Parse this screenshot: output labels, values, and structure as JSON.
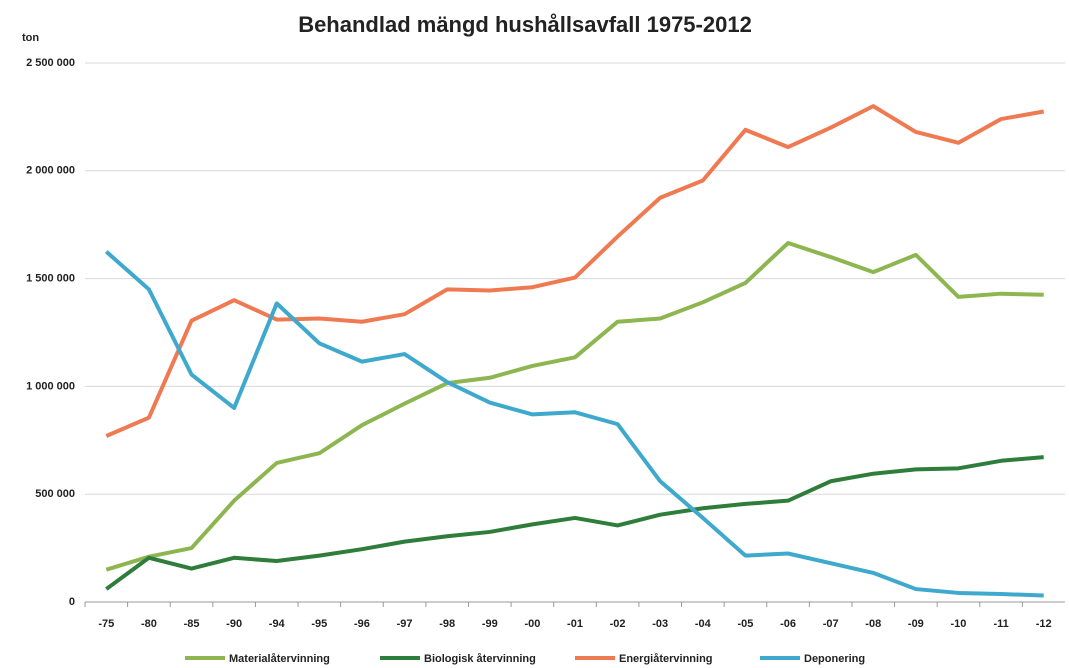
{
  "chart_data": {
    "type": "line",
    "title": "Behandlad mängd hushållsavfall 1975-2012",
    "ylabel": "ton",
    "categories": [
      "-75",
      "-80",
      "-85",
      "-90",
      "-94",
      "-95",
      "-96",
      "-97",
      "-98",
      "-99",
      "-00",
      "-01",
      "-02",
      "-03",
      "-04",
      "-05",
      "-06",
      "-07",
      "-08",
      "-09",
      "-10",
      "-11",
      "-12"
    ],
    "ylim": [
      0,
      2500000
    ],
    "yticks": [
      {
        "value": 0,
        "label": "0"
      },
      {
        "value": 500000,
        "label": "500 000"
      },
      {
        "value": 1000000,
        "label": "1 000 000"
      },
      {
        "value": 1500000,
        "label": "1 500 000"
      },
      {
        "value": 2000000,
        "label": "2 000 000"
      },
      {
        "value": 2500000,
        "label": "2 500 000"
      }
    ],
    "grid": true,
    "legend": "bottom",
    "series": [
      {
        "name": "Materialåtervinning",
        "color": "#8db651",
        "values": [
          150000,
          210000,
          250000,
          470000,
          645000,
          690000,
          820000,
          920000,
          1015000,
          1040000,
          1095000,
          1135000,
          1300000,
          1315000,
          1390000,
          1480000,
          1665000,
          1600000,
          1530000,
          1610000,
          1415000,
          1430000,
          1425000
        ]
      },
      {
        "name": "Biologisk återvinning",
        "color": "#2e7d3a",
        "values": [
          60000,
          205000,
          155000,
          205000,
          190000,
          215000,
          245000,
          280000,
          305000,
          325000,
          360000,
          390000,
          355000,
          405000,
          435000,
          455000,
          470000,
          560000,
          595000,
          615000,
          620000,
          655000,
          672000
        ]
      },
      {
        "name": "Energiåtervinning",
        "color": "#ef7a52",
        "values": [
          770000,
          855000,
          1305000,
          1400000,
          1310000,
          1315000,
          1300000,
          1335000,
          1450000,
          1445000,
          1460000,
          1505000,
          1695000,
          1875000,
          1955000,
          2190000,
          2110000,
          2200000,
          2300000,
          2180000,
          2130000,
          2240000,
          2275000
        ]
      },
      {
        "name": "Deponering",
        "color": "#3ea9cc",
        "values": [
          1625000,
          1450000,
          1055000,
          900000,
          1385000,
          1200000,
          1115000,
          1150000,
          1020000,
          925000,
          870000,
          880000,
          825000,
          560000,
          390000,
          215000,
          225000,
          180000,
          135000,
          60000,
          42000,
          37000,
          30000
        ]
      }
    ]
  }
}
